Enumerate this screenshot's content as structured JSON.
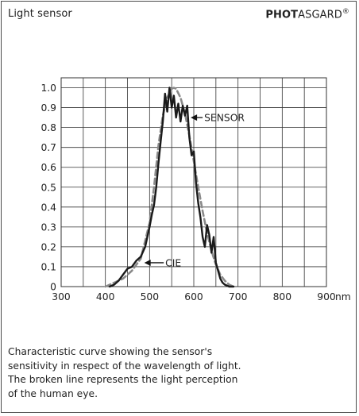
{
  "header": {
    "title": "Light sensor",
    "brand_bold": "PHOT",
    "brand_regular": "ASGARD",
    "brand_mark": "®"
  },
  "caption": {
    "lines": [
      "Characteristic curve showing the sensor's",
      "sensitivity in respect of the wavelength of light.",
      "The broken line represents the light perception",
      "of the human eye."
    ]
  },
  "chart_data": {
    "type": "line",
    "xlim": [
      300,
      900
    ],
    "ylim": [
      0,
      1.05
    ],
    "x_ticks": [
      300,
      400,
      500,
      600,
      700,
      800,
      900
    ],
    "x_tick_labels": [
      "300",
      "400",
      "500",
      "600",
      "700",
      "800",
      "900"
    ],
    "x_unit": "nm",
    "y_ticks": [
      0,
      0.1,
      0.2,
      0.3,
      0.4,
      0.5,
      0.6,
      0.7,
      0.8,
      0.9,
      1.0
    ],
    "y_tick_labels": [
      "0",
      "0.1",
      "0.2",
      "0.3",
      "0.4",
      "0.5",
      "0.6",
      "0.7",
      "0.8",
      "0.9",
      "1.0"
    ],
    "grid": true,
    "series": [
      {
        "name": "SENSOR",
        "style": "solid",
        "color": "#1a1a1a",
        "x": [
          410,
          420,
          430,
          440,
          450,
          460,
          470,
          480,
          490,
          500,
          505,
          510,
          515,
          520,
          525,
          530,
          535,
          540,
          545,
          550,
          555,
          560,
          565,
          570,
          575,
          580,
          585,
          590,
          595,
          600,
          605,
          610,
          615,
          620,
          625,
          630,
          635,
          640,
          645,
          650,
          655,
          660,
          665,
          670,
          680,
          690
        ],
        "y": [
          0.0,
          0.01,
          0.03,
          0.06,
          0.09,
          0.1,
          0.13,
          0.15,
          0.2,
          0.3,
          0.36,
          0.41,
          0.5,
          0.62,
          0.73,
          0.83,
          0.97,
          0.88,
          1.0,
          0.9,
          0.96,
          0.85,
          0.92,
          0.83,
          0.91,
          0.86,
          0.91,
          0.75,
          0.66,
          0.68,
          0.52,
          0.42,
          0.35,
          0.25,
          0.2,
          0.31,
          0.26,
          0.17,
          0.25,
          0.12,
          0.08,
          0.04,
          0.02,
          0.01,
          0.0,
          0.0
        ]
      },
      {
        "name": "CIE",
        "style": "dashed",
        "color": "#8a8a8a",
        "x": [
          400,
          420,
          440,
          460,
          480,
          500,
          510,
          520,
          530,
          540,
          550,
          555,
          560,
          570,
          580,
          590,
          600,
          610,
          620,
          630,
          640,
          650,
          660,
          670,
          680,
          690
        ],
        "y": [
          0.0,
          0.02,
          0.04,
          0.08,
          0.14,
          0.32,
          0.5,
          0.71,
          0.86,
          0.95,
          0.995,
          1.0,
          0.995,
          0.95,
          0.87,
          0.76,
          0.63,
          0.5,
          0.38,
          0.27,
          0.18,
          0.11,
          0.06,
          0.03,
          0.01,
          0.0
        ]
      }
    ],
    "annotations": [
      {
        "text": "SENSOR",
        "from": [
          620,
          0.85
        ],
        "to": [
          593,
          0.85
        ]
      },
      {
        "text": "CIE",
        "from": [
          532,
          0.12
        ],
        "to": [
          488,
          0.12
        ]
      }
    ]
  }
}
